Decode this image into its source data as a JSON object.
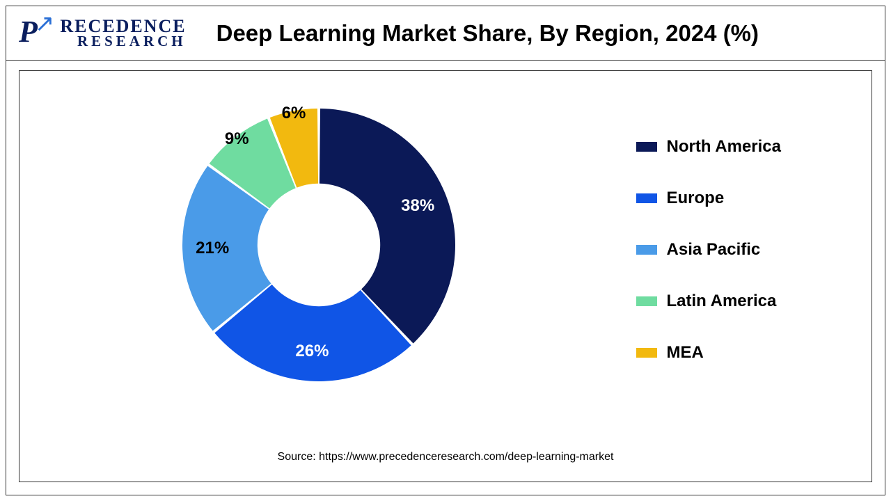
{
  "logo": {
    "brand_top": "RECEDENCE",
    "brand_bottom": "RESEARCH"
  },
  "title": "Deep Learning Market Share, By Region, 2024 (%)",
  "chart": {
    "type": "donut",
    "inner_radius_ratio": 0.45,
    "start_angle_deg": 0,
    "background_color": "#ffffff",
    "slices": [
      {
        "label": "North America",
        "value": 38,
        "display": "38%",
        "color": "#0b1957"
      },
      {
        "label": "Europe",
        "value": 26,
        "display": "26%",
        "color": "#1055e6"
      },
      {
        "label": "Asia Pacific",
        "value": 21,
        "display": "21%",
        "color": "#4a9be8"
      },
      {
        "label": "Latin America",
        "value": 9,
        "display": "9%",
        "color": "#6fdca0"
      },
      {
        "label": "MEA",
        "value": 6,
        "display": "6%",
        "color": "#f2b90f"
      }
    ],
    "slice_gap_deg": 1.2,
    "label_fontsize": 24,
    "label_fontweight": "bold",
    "label_radius_ratio": 0.78
  },
  "legend": {
    "swatch_width": 30,
    "swatch_height": 14,
    "fontsize": 24,
    "fontweight": "bold"
  },
  "source": "Source: https://www.precedenceresearch.com/deep-learning-market"
}
